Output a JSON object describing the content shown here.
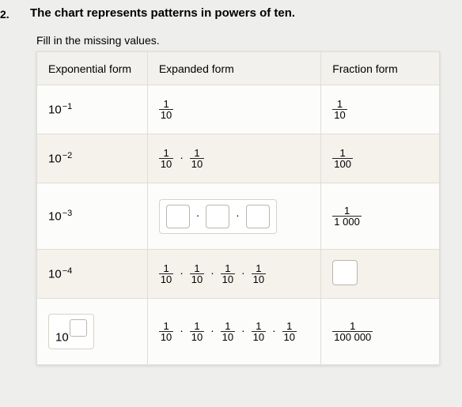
{
  "question_number": "2.",
  "title": "The chart represents patterns in powers of ten.",
  "instruction": "Fill in the missing values.",
  "headers": {
    "exponential": "Exponential form",
    "expanded": "Expanded form",
    "fraction": "Fraction form"
  },
  "base": "10",
  "dot": "·",
  "frac_one": "1",
  "denoms": {
    "ten": "10",
    "hundred": "100",
    "thousand": "1 000",
    "hundred_thousand": "100 000"
  },
  "exponents": {
    "m1": "−1",
    "m2": "−2",
    "m3": "−3",
    "m4": "−4"
  }
}
